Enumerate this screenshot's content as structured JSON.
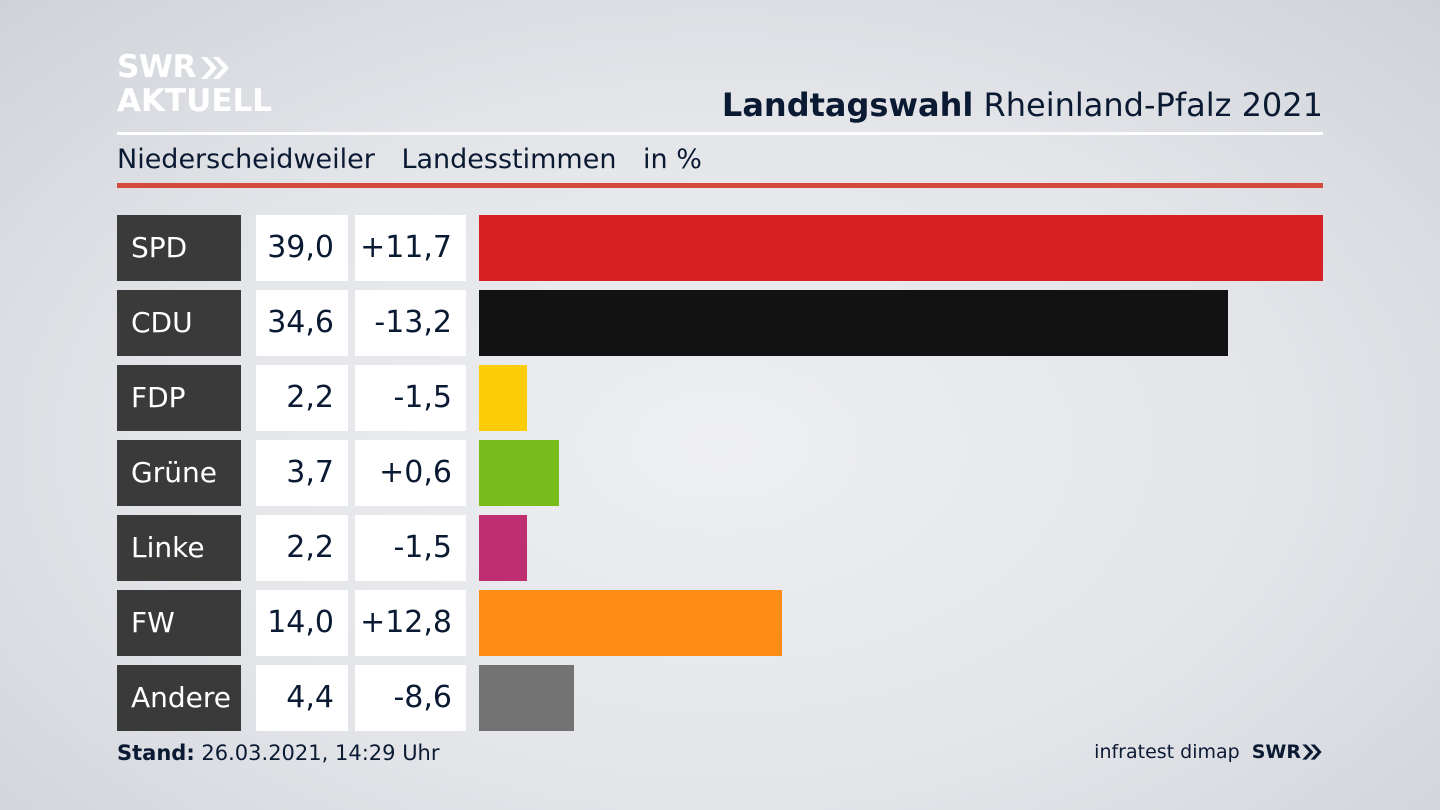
{
  "brand": {
    "line1": "SWR",
    "line2": "AKTUELL",
    "footer_logo": "SWR"
  },
  "header": {
    "title_bold": "Landtagswahl",
    "title_rest": "Rheinland-Pfalz 2021",
    "location": "Niederscheidweiler",
    "vote_type": "Landesstimmen",
    "unit": "in %"
  },
  "footer": {
    "stand_label": "Stand:",
    "stand_value": "26.03.2021, 14:29 Uhr",
    "source": "infratest dimap"
  },
  "colors": {
    "accent_red_rule": "#d44b3b",
    "label_bg": "#3a3a3a"
  },
  "chart_data": {
    "type": "bar",
    "orientation": "horizontal",
    "unit": "%",
    "categories": [
      "SPD",
      "CDU",
      "FDP",
      "Grüne",
      "Linke",
      "FW",
      "Andere"
    ],
    "values": [
      39.0,
      34.6,
      2.2,
      3.7,
      2.2,
      14.0,
      4.4
    ],
    "value_labels": [
      "39,0",
      "34,6",
      "2,2",
      "3,7",
      "2,2",
      "14,0",
      "4,4"
    ],
    "change_labels": [
      "+11,7",
      "-13,2",
      "-1,5",
      "+0,6",
      "-1,5",
      "+12,8",
      "-8,6"
    ],
    "changes": [
      11.7,
      -13.2,
      -1.5,
      0.6,
      -1.5,
      12.8,
      -8.6
    ],
    "bar_colors": [
      "#d62021",
      "#121212",
      "#fdcd09",
      "#78bc1b",
      "#bf2e70",
      "#fd8d17",
      "#737373"
    ],
    "xlim": [
      0,
      39.0
    ]
  }
}
